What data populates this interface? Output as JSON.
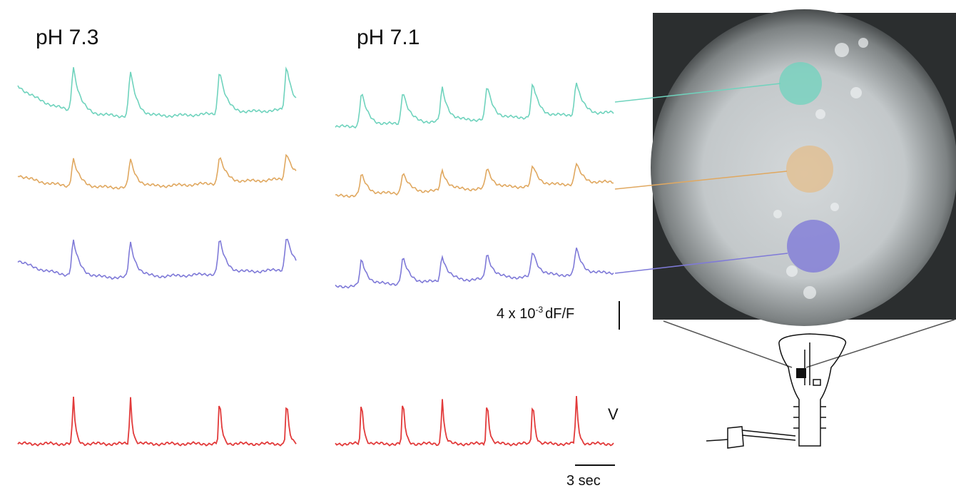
{
  "panels": [
    {
      "label": "pH 7.3"
    },
    {
      "label": "pH 7.1"
    }
  ],
  "trace_label": "V",
  "scale_bars": {
    "vertical": {
      "prefix": "4 x 10",
      "exponent": "-3",
      "unit": "dF/F"
    },
    "horizontal": "3 sec"
  }
}
